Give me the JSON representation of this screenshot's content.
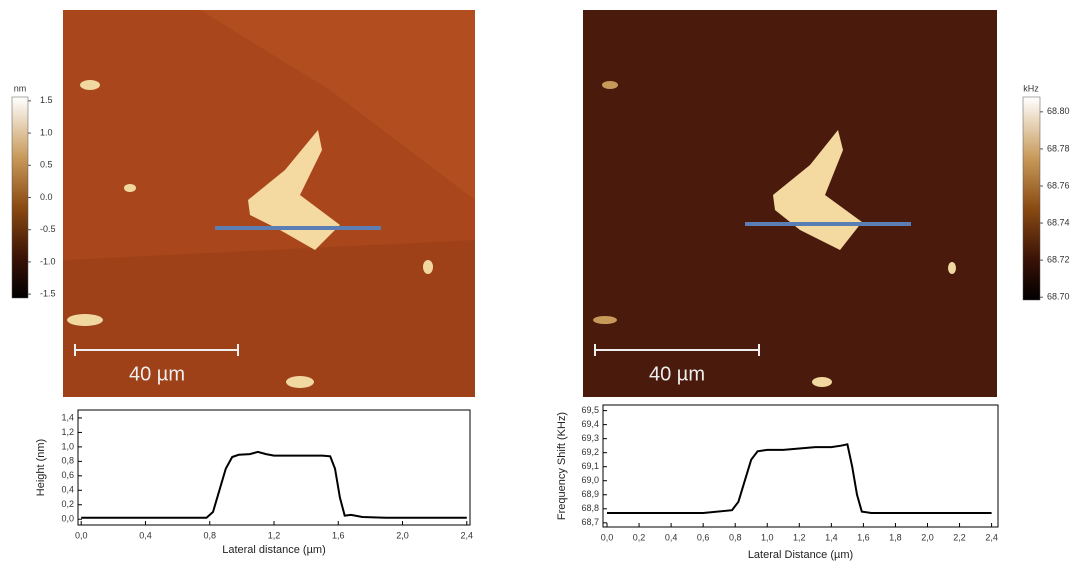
{
  "chart_data": [
    {
      "type": "line",
      "xlabel": "Lateral distance (µm)",
      "ylabel": "Height (nm)",
      "color": "#000000",
      "x": [
        0,
        0.2,
        0.4,
        0.6,
        0.78,
        0.82,
        0.86,
        0.9,
        0.94,
        0.98,
        1.05,
        1.1,
        1.15,
        1.2,
        1.3,
        1.4,
        1.5,
        1.55,
        1.58,
        1.61,
        1.64,
        1.68,
        1.75,
        1.9,
        2.1,
        2.3,
        2.4
      ],
      "values": [
        0.02,
        0.02,
        0.02,
        0.02,
        0.02,
        0.1,
        0.4,
        0.7,
        0.86,
        0.89,
        0.9,
        0.93,
        0.9,
        0.88,
        0.88,
        0.88,
        0.88,
        0.87,
        0.7,
        0.3,
        0.05,
        0.06,
        0.03,
        0.02,
        0.02,
        0.02,
        0.02
      ],
      "xlim": [
        -0.02,
        2.42
      ],
      "ylim": [
        -0.08,
        1.51
      ],
      "xticks": [
        {
          "value": 0,
          "label": "0,0"
        },
        {
          "value": 0.4,
          "label": "0,4"
        },
        {
          "value": 0.8,
          "label": "0,8"
        },
        {
          "value": 1.2,
          "label": "1,2"
        },
        {
          "value": 1.6,
          "label": "1,6"
        },
        {
          "value": 2.0,
          "label": "2,0"
        },
        {
          "value": 2.4,
          "label": "2,4"
        }
      ],
      "yticks": [
        {
          "value": 0,
          "label": "0,0"
        },
        {
          "value": 0.2,
          "label": "0,2"
        },
        {
          "value": 0.4,
          "label": "0,4"
        },
        {
          "value": 0.6,
          "label": "0,6"
        },
        {
          "value": 0.8,
          "label": "0,8"
        },
        {
          "value": 1.0,
          "label": "1,0"
        },
        {
          "value": 1.2,
          "label": "1,2"
        },
        {
          "value": 1.4,
          "label": "1,4"
        }
      ]
    },
    {
      "type": "line",
      "xlabel": "Lateral Distance (µm)",
      "ylabel": "Frequency Shift (KHz)",
      "color": "#000000",
      "x": [
        0,
        0.2,
        0.4,
        0.6,
        0.78,
        0.82,
        0.86,
        0.9,
        0.94,
        1.0,
        1.1,
        1.2,
        1.3,
        1.4,
        1.46,
        1.5,
        1.53,
        1.56,
        1.59,
        1.65,
        1.8,
        2.0,
        2.2,
        2.4
      ],
      "values": [
        68.77,
        68.77,
        68.77,
        68.77,
        68.79,
        68.85,
        69.0,
        69.15,
        69.21,
        69.22,
        69.22,
        69.23,
        69.24,
        69.24,
        69.25,
        69.26,
        69.1,
        68.9,
        68.78,
        68.77,
        68.77,
        68.77,
        68.77,
        68.77
      ],
      "xlim": [
        -0.025,
        2.44
      ],
      "ylim": [
        68.67,
        69.54
      ],
      "xticks": [
        {
          "value": 0,
          "label": "0,0"
        },
        {
          "value": 0.2,
          "label": "0,2"
        },
        {
          "value": 0.4,
          "label": "0,4"
        },
        {
          "value": 0.6,
          "label": "0,6"
        },
        {
          "value": 0.8,
          "label": "0,8"
        },
        {
          "value": 1.0,
          "label": "1,0"
        },
        {
          "value": 1.2,
          "label": "1,2"
        },
        {
          "value": 1.4,
          "label": "1,4"
        },
        {
          "value": 1.6,
          "label": "1,6"
        },
        {
          "value": 1.8,
          "label": "1,8"
        },
        {
          "value": 2.0,
          "label": "2,0"
        },
        {
          "value": 2.2,
          "label": "2,2"
        },
        {
          "value": 2.4,
          "label": "2,4"
        }
      ],
      "yticks": [
        {
          "value": 68.7,
          "label": "68,7"
        },
        {
          "value": 68.8,
          "label": "68,8"
        },
        {
          "value": 68.9,
          "label": "68,9"
        },
        {
          "value": 69.0,
          "label": "69,0"
        },
        {
          "value": 69.1,
          "label": "69,1"
        },
        {
          "value": 69.2,
          "label": "69,2"
        },
        {
          "value": 69.3,
          "label": "69,3"
        },
        {
          "value": 69.4,
          "label": "69,4"
        },
        {
          "value": 69.5,
          "label": "69,5"
        }
      ]
    }
  ],
  "images": [
    {
      "unit": "nm",
      "scale_bar": "40 µm",
      "clim": [
        -1.56,
        1.56
      ],
      "cticks": [
        {
          "value": 1.5,
          "label": "1.5"
        },
        {
          "value": 1,
          "label": "1.0"
        },
        {
          "value": 0.5,
          "label": "0.5"
        },
        {
          "value": 0,
          "label": "0.0"
        },
        {
          "value": -0.5,
          "label": "-0.5"
        },
        {
          "value": -1,
          "label": "-1.0"
        },
        {
          "value": -1.5,
          "label": "-1.5"
        }
      ]
    },
    {
      "unit": "kHz",
      "scale_bar": "40 µm",
      "clim": [
        68.6985,
        68.808
      ],
      "cticks": [
        {
          "value": 68.8,
          "label": "68.80"
        },
        68.78,
        68.76,
        68.74,
        68.72,
        {
          "value": 68.7,
          "label": "68.70"
        }
      ]
    }
  ]
}
